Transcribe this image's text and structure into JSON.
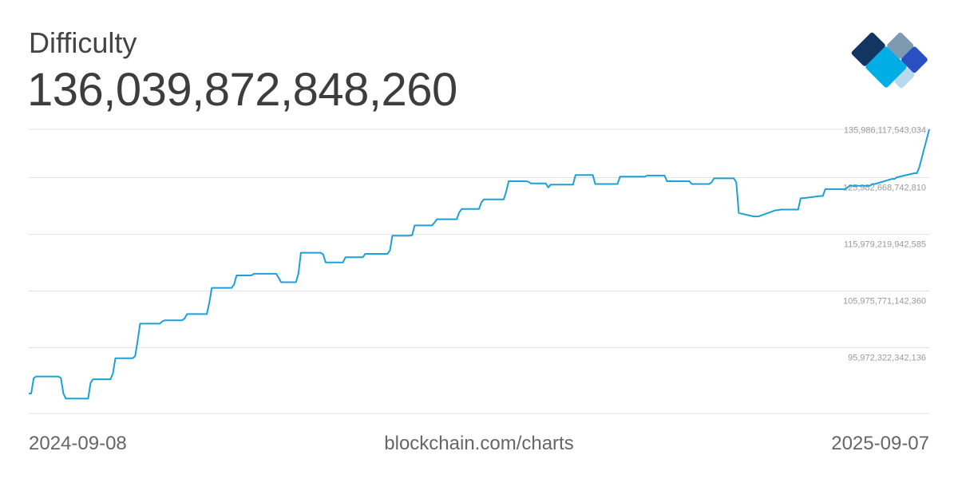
{
  "header": {
    "title": "Difficulty",
    "value": "136,039,872,848,260"
  },
  "footer": {
    "start_date": "2024-09-08",
    "source": "blockchain.com/charts",
    "end_date": "2025-09-07"
  },
  "logo": {
    "icon": "blockchain-logo-icon",
    "colors": [
      "#7c9ab2",
      "#123661",
      "#2a4fc0",
      "#00aee6",
      "#b6d9ee"
    ]
  },
  "chart_data": {
    "type": "line",
    "title": "Difficulty",
    "line_color": "#1ca0d6",
    "grid": true,
    "xlim": [
      "2024-09-08",
      "2025-09-07"
    ],
    "y_ticks": [
      {
        "value": 135986117543034,
        "label": "135,986,117,543,034"
      },
      {
        "value": 125982668742810,
        "label": "125,982,668,742,810"
      },
      {
        "value": 115979219942585,
        "label": "115,979,219,942,585"
      },
      {
        "value": 105975771142360,
        "label": "105,975,771,142,360"
      },
      {
        "value": 95972322342136,
        "label": "95,972,322,342,136"
      }
    ],
    "ylim": [
      85968873541911,
      136039872848260
    ],
    "series": [
      {
        "x": [
          "2024-09-08",
          "2024-09-09",
          "2024-09-10",
          "2024-09-11",
          "2024-09-20",
          "2024-09-21",
          "2024-09-22",
          "2024-09-23",
          "2024-10-01",
          "2024-10-02",
          "2024-10-03",
          "2024-10-04",
          "2024-10-11",
          "2024-10-12",
          "2024-10-13",
          "2024-10-20",
          "2024-10-21",
          "2024-10-22",
          "2024-10-23",
          "2024-10-31",
          "2024-11-01",
          "2024-11-02",
          "2024-11-09",
          "2024-11-10",
          "2024-11-11",
          "2024-11-19",
          "2024-11-20",
          "2024-11-21",
          "2024-11-29",
          "2024-11-30",
          "2024-12-01",
          "2024-12-07",
          "2024-12-08",
          "2024-12-09",
          "2024-12-17",
          "2024-12-18",
          "2024-12-19",
          "2024-12-25",
          "2024-12-26",
          "2024-12-27",
          "2025-01-04",
          "2025-01-05",
          "2025-01-06",
          "2025-01-12",
          "2025-01-13",
          "2025-01-14",
          "2025-01-21",
          "2025-01-22",
          "2025-01-23",
          "2025-01-31",
          "2025-02-01",
          "2025-02-02",
          "2025-02-09",
          "2025-02-10",
          "2025-02-11",
          "2025-02-18",
          "2025-02-19",
          "2025-02-20",
          "2025-02-28",
          "2025-03-01",
          "2025-03-02",
          "2025-03-09",
          "2025-03-10",
          "2025-03-11",
          "2025-03-19",
          "2025-03-20",
          "2025-03-21",
          "2025-03-28",
          "2025-03-29",
          "2025-03-30",
          "2025-04-05",
          "2025-04-06",
          "2025-04-07",
          "2025-04-15",
          "2025-04-16",
          "2025-04-17",
          "2025-04-24",
          "2025-04-25",
          "2025-04-26",
          "2025-05-04",
          "2025-05-05",
          "2025-05-06",
          "2025-05-14",
          "2025-05-15",
          "2025-05-16",
          "2025-05-23",
          "2025-05-24",
          "2025-05-25",
          "2025-06-01",
          "2025-06-02",
          "2025-06-03",
          "2025-06-10",
          "2025-06-11",
          "2025-06-12",
          "2025-06-20",
          "2025-06-21",
          "2025-06-22",
          "2025-06-28",
          "2025-06-29",
          "2025-06-30",
          "2025-07-07",
          "2025-07-08",
          "2025-07-09",
          "2025-07-16",
          "2025-07-17",
          "2025-07-18",
          "2025-07-25",
          "2025-07-26",
          "2025-07-27",
          "2025-08-04",
          "2025-08-05",
          "2025-08-06",
          "2025-08-14",
          "2025-08-15",
          "2025-08-16",
          "2025-08-23",
          "2025-08-24",
          "2025-08-25",
          "2025-09-01",
          "2025-09-02",
          "2025-09-03",
          "2025-09-07"
        ],
        "values": [
          89500000000000,
          89500000000000,
          92200000000000,
          92500000000000,
          92500000000000,
          92200000000000,
          89500000000000,
          88600000000000,
          88600000000000,
          88600000000000,
          91400000000000,
          92000000000000,
          92000000000000,
          93000000000000,
          95700000000000,
          95700000000000,
          96100000000000,
          98800000000000,
          101800000000000,
          101800000000000,
          102200000000000,
          102400000000000,
          102400000000000,
          102700000000000,
          103500000000000,
          103500000000000,
          105500000000000,
          108100000000000,
          108100000000000,
          108700000000000,
          110300000000000,
          110300000000000,
          110600000000000,
          110600000000000,
          110600000000000,
          109900000000000,
          109100000000000,
          109100000000000,
          110600000000000,
          114300000000000,
          114300000000000,
          114000000000000,
          112600000000000,
          112600000000000,
          112600000000000,
          113500000000000,
          113500000000000,
          114100000000000,
          114100000000000,
          114100000000000,
          114700000000000,
          117300000000000,
          117300000000000,
          117400000000000,
          119100000000000,
          119100000000000,
          119600000000000,
          120200000000000,
          120200000000000,
          121400000000000,
          122000000000000,
          122000000000000,
          123200000000000,
          123700000000000,
          123700000000000,
          125100000000000,
          126900000000000,
          126900000000000,
          126800000000000,
          126500000000000,
          126500000000000,
          125800000000000,
          126300000000000,
          126300000000000,
          126300000000000,
          128000000000000,
          128000000000000,
          126400000000000,
          126400000000000,
          126400000000000,
          127700000000000,
          127700000000000,
          127700000000000,
          127700000000000,
          127900000000000,
          127900000000000,
          126900000000000,
          126900000000000,
          126900000000000,
          126900000000000,
          126400000000000,
          126400000000000,
          126700000000000,
          127400000000000,
          127400000000000,
          126700000000000,
          121300000000000,
          120700000000000,
          120700000000000,
          120700000000000,
          121800000000000,
          121800000000000,
          121900000000000,
          121900000000000,
          123900000000000,
          123900000000000,
          124300000000000,
          124300000000000,
          125500000000000,
          125500000000000,
          125800000000000,
          126100000000000,
          126100000000000,
          126400000000000,
          126400000000000,
          127300000000000,
          127300000000000,
          127600000000000,
          128300000000000,
          128300000000000,
          129400000000000,
          136039872848260
        ]
      }
    ]
  }
}
